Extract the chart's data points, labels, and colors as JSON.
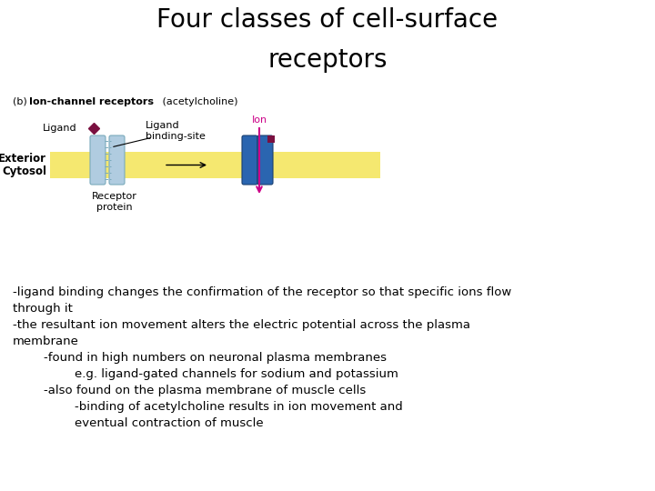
{
  "title_line1": "Four classes of cell-surface",
  "title_line2": "receptors",
  "title_fontsize": 20,
  "bg_color": "#ffffff",
  "subtitle_plain": "(b)  ",
  "subtitle_bold": "Ion-channel receptors",
  "subtitle_normal": " (acetylcholine)",
  "body_text": "-ligand binding changes the confirmation of the receptor so that specific ions flow\nthrough it\n-the resultant ion movement alters the electric potential across the plasma\nmembrane\n        -found in high numbers on neuronal plasma membranes\n                e.g. ligand-gated channels for sodium and potassium\n        -also found on the plasma membrane of muscle cells\n                -binding of acetylcholine results in ion movement and\n                eventual contraction of muscle",
  "body_fontsize": 9.5,
  "membrane_color": "#f5e870",
  "receptor_open_color": "#b0cce0",
  "receptor_closed_color": "#2a65b0",
  "ligand_diamond_color": "#7a1040",
  "ion_arrow_color": "#cc0088",
  "exterior_label": "Exterior",
  "cytosol_label": "Cytosol",
  "ligand_label": "Ligand",
  "binding_site_label": "Ligand\nbinding-site",
  "ion_label": "Ion",
  "receptor_protein_label": "Receptor\nprotein"
}
